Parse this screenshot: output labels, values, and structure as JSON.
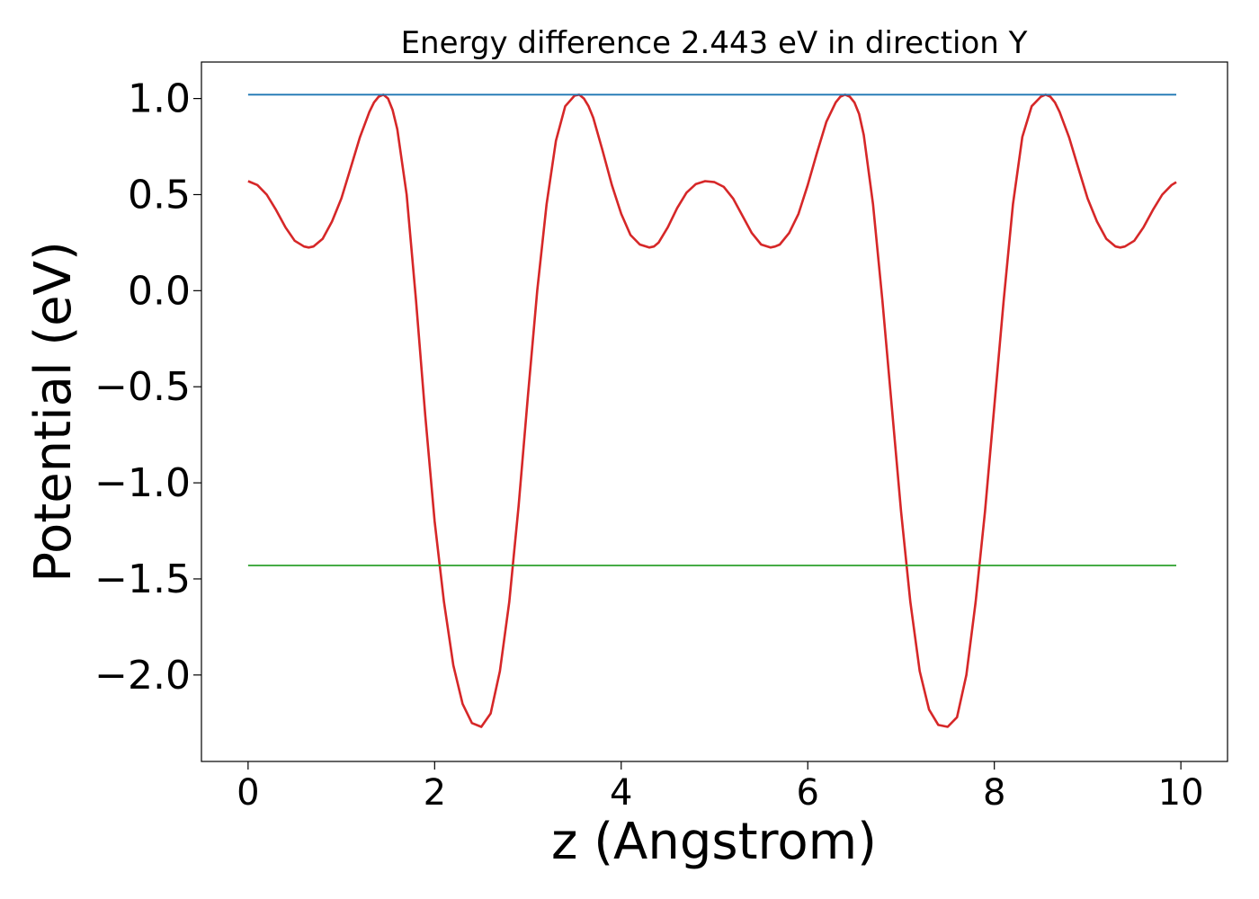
{
  "chart_data": {
    "type": "line",
    "title": "Energy difference 2.443 eV in direction Y",
    "xlabel": "z (Angstrom)",
    "ylabel": "Potential (eV)",
    "xlim": [
      -0.5,
      10.5
    ],
    "ylim": [
      -2.45,
      1.19
    ],
    "xticks": [
      0,
      2,
      4,
      6,
      8,
      10
    ],
    "xtick_labels": [
      "0",
      "2",
      "4",
      "6",
      "8",
      "10"
    ],
    "yticks": [
      1.0,
      0.5,
      0.0,
      -0.5,
      -1.0,
      -1.5,
      -2.0
    ],
    "ytick_labels": [
      "1.0",
      "0.5",
      "0.0",
      "−0.5",
      "−1.0",
      "−1.5",
      "−2.0"
    ],
    "grid": false,
    "series": [
      {
        "color": "#d62728",
        "x": [
          0.0,
          0.1,
          0.2,
          0.3,
          0.4,
          0.5,
          0.6,
          0.65,
          0.7,
          0.8,
          0.9,
          1.0,
          1.1,
          1.2,
          1.3,
          1.35,
          1.4,
          1.45,
          1.5,
          1.55,
          1.6,
          1.7,
          1.8,
          1.9,
          2.0,
          2.1,
          2.2,
          2.3,
          2.4,
          2.5,
          2.6,
          2.7,
          2.8,
          2.9,
          3.0,
          3.1,
          3.2,
          3.3,
          3.4,
          3.5,
          3.55,
          3.6,
          3.65,
          3.7,
          3.8,
          3.9,
          4.0,
          4.1,
          4.2,
          4.3,
          4.35,
          4.4,
          4.5,
          4.6,
          4.7,
          4.8,
          4.9,
          5.0,
          5.1,
          5.2,
          5.3,
          5.4,
          5.5,
          5.6,
          5.65,
          5.7,
          5.8,
          5.9,
          6.0,
          6.1,
          6.2,
          6.3,
          6.35,
          6.4,
          6.45,
          6.5,
          6.55,
          6.6,
          6.7,
          6.8,
          6.9,
          7.0,
          7.1,
          7.2,
          7.3,
          7.4,
          7.5,
          7.6,
          7.7,
          7.8,
          7.9,
          8.0,
          8.1,
          8.2,
          8.3,
          8.4,
          8.5,
          8.55,
          8.6,
          8.65,
          8.7,
          8.8,
          8.9,
          9.0,
          9.1,
          9.2,
          9.3,
          9.35,
          9.4,
          9.5,
          9.6,
          9.7,
          9.8,
          9.9,
          9.95
        ],
        "y": [
          0.57,
          0.55,
          0.5,
          0.42,
          0.33,
          0.26,
          0.23,
          0.225,
          0.23,
          0.27,
          0.36,
          0.48,
          0.64,
          0.8,
          0.93,
          0.98,
          1.01,
          1.02,
          1.0,
          0.94,
          0.84,
          0.5,
          -0.05,
          -0.65,
          -1.2,
          -1.62,
          -1.95,
          -2.15,
          -2.25,
          -2.27,
          -2.2,
          -1.98,
          -1.62,
          -1.12,
          -0.55,
          0.0,
          0.45,
          0.78,
          0.96,
          1.015,
          1.02,
          1.0,
          0.96,
          0.9,
          0.73,
          0.55,
          0.4,
          0.29,
          0.24,
          0.225,
          0.23,
          0.25,
          0.33,
          0.43,
          0.51,
          0.555,
          0.57,
          0.565,
          0.54,
          0.48,
          0.39,
          0.3,
          0.24,
          0.225,
          0.23,
          0.24,
          0.3,
          0.4,
          0.55,
          0.72,
          0.88,
          0.98,
          1.01,
          1.02,
          1.01,
          0.98,
          0.92,
          0.81,
          0.45,
          -0.05,
          -0.6,
          -1.15,
          -1.62,
          -1.98,
          -2.18,
          -2.26,
          -2.27,
          -2.22,
          -2.0,
          -1.62,
          -1.15,
          -0.6,
          -0.05,
          0.45,
          0.8,
          0.96,
          1.01,
          1.02,
          1.01,
          0.98,
          0.93,
          0.8,
          0.64,
          0.48,
          0.36,
          0.27,
          0.23,
          0.225,
          0.23,
          0.26,
          0.33,
          0.42,
          0.5,
          0.55,
          0.565
        ]
      },
      {
        "color": "#1f77b4",
        "x": [
          0.0,
          9.95
        ],
        "y": [
          1.02,
          1.02
        ]
      },
      {
        "color": "#2ca02c",
        "x": [
          0.0,
          9.95
        ],
        "y": [
          -1.43,
          -1.43
        ]
      }
    ]
  }
}
